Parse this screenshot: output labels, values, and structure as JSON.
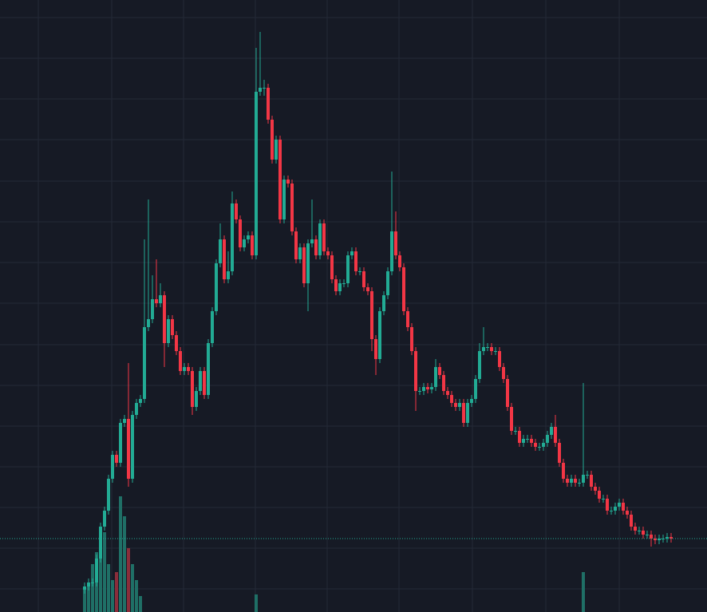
{
  "chart_data": {
    "type": "candlestick",
    "up_color": "#22ab94",
    "down_color": "#f23645",
    "volume_up_color": "#1f6f66",
    "volume_down_color": "#8a2d3a",
    "background": "#161a25",
    "grid_color": "#242936",
    "grid": true,
    "ylim": [
      0,
      767
    ],
    "yticks": [
      745,
      694,
      643,
      592,
      540,
      489,
      438,
      387,
      335,
      284,
      233,
      182,
      131,
      80,
      29
    ],
    "volume_lim": [
      0,
      767
    ],
    "open": [
      28,
      32,
      37,
      37,
      67,
      107,
      127,
      167,
      197,
      187,
      237,
      242,
      167,
      247,
      262,
      267,
      357,
      367,
      392,
      387,
      397,
      337,
      367,
      347,
      327,
      302,
      307,
      302,
      257,
      277,
      302,
      272,
      337,
      377,
      437,
      467,
      417,
      427,
      512,
      492,
      457,
      467,
      472,
      447,
      652,
      657,
      657,
      617,
      567,
      592,
      492,
      542,
      537,
      477,
      442,
      457,
      412,
      462,
      467,
      447,
      487,
      452,
      447,
      417,
      402,
      412,
      412,
      447,
      452,
      427,
      427,
      407,
      402,
      342,
      317,
      377,
      397,
      427,
      477,
      447,
      432,
      377,
      357,
      327,
      277,
      277,
      282,
      279,
      282,
      307,
      297,
      277,
      272,
      262,
      257,
      262,
      237,
      262,
      267,
      292,
      327,
      332,
      332,
      327,
      327,
      307,
      292,
      257,
      227,
      227,
      212,
      217,
      217,
      212,
      207,
      207,
      212,
      222,
      232,
      212,
      187,
      167,
      162,
      167,
      162,
      162,
      172,
      172,
      157,
      152,
      142,
      142,
      127,
      127,
      132,
      137,
      127,
      122,
      107,
      102,
      102,
      97,
      97,
      92,
      90,
      92,
      92,
      94
    ],
    "high": [
      37,
      42,
      42,
      72,
      112,
      132,
      172,
      202,
      202,
      242,
      247,
      312,
      252,
      267,
      272,
      467,
      517,
      422,
      442,
      412,
      402,
      372,
      372,
      352,
      332,
      312,
      312,
      307,
      282,
      307,
      307,
      342,
      382,
      442,
      487,
      472,
      452,
      527,
      517,
      497,
      472,
      477,
      477,
      707,
      727,
      667,
      662,
      622,
      597,
      597,
      547,
      547,
      542,
      482,
      462,
      462,
      467,
      517,
      472,
      492,
      492,
      457,
      452,
      422,
      417,
      417,
      452,
      457,
      457,
      432,
      432,
      412,
      407,
      347,
      382,
      402,
      432,
      552,
      502,
      452,
      437,
      382,
      362,
      332,
      282,
      287,
      287,
      287,
      317,
      312,
      302,
      282,
      277,
      267,
      267,
      267,
      267,
      272,
      297,
      337,
      357,
      337,
      337,
      332,
      332,
      312,
      297,
      262,
      232,
      232,
      222,
      222,
      222,
      217,
      212,
      217,
      227,
      237,
      247,
      217,
      192,
      172,
      172,
      172,
      167,
      287,
      177,
      177,
      162,
      157,
      147,
      147,
      132,
      137,
      142,
      142,
      132,
      127,
      112,
      107,
      107,
      102,
      102,
      97,
      97,
      97,
      99,
      99
    ],
    "low": [
      23,
      27,
      32,
      32,
      62,
      102,
      122,
      162,
      182,
      182,
      232,
      157,
      162,
      242,
      257,
      262,
      352,
      362,
      382,
      382,
      307,
      332,
      342,
      322,
      297,
      297,
      297,
      247,
      252,
      272,
      267,
      267,
      332,
      372,
      432,
      412,
      412,
      422,
      487,
      452,
      452,
      462,
      442,
      442,
      647,
      647,
      612,
      562,
      562,
      487,
      487,
      532,
      472,
      437,
      437,
      407,
      377,
      457,
      442,
      442,
      447,
      442,
      412,
      397,
      397,
      407,
      407,
      442,
      422,
      422,
      402,
      397,
      327,
      297,
      312,
      372,
      392,
      422,
      442,
      427,
      372,
      352,
      322,
      252,
      272,
      272,
      274,
      274,
      277,
      292,
      272,
      267,
      257,
      252,
      252,
      232,
      232,
      257,
      262,
      287,
      322,
      327,
      322,
      322,
      302,
      287,
      252,
      222,
      222,
      207,
      207,
      212,
      207,
      202,
      202,
      202,
      207,
      217,
      207,
      182,
      162,
      157,
      157,
      157,
      157,
      157,
      167,
      152,
      147,
      137,
      137,
      122,
      122,
      122,
      127,
      122,
      117,
      102,
      97,
      97,
      92,
      92,
      82,
      85,
      85,
      87,
      87,
      87
    ],
    "close": [
      32,
      37,
      37,
      67,
      107,
      127,
      167,
      197,
      187,
      237,
      242,
      167,
      247,
      262,
      267,
      357,
      367,
      392,
      387,
      397,
      337,
      367,
      347,
      327,
      302,
      307,
      302,
      257,
      277,
      302,
      272,
      337,
      377,
      437,
      467,
      417,
      427,
      512,
      492,
      457,
      467,
      472,
      447,
      652,
      657,
      657,
      617,
      567,
      592,
      492,
      542,
      537,
      477,
      442,
      457,
      412,
      462,
      467,
      447,
      487,
      452,
      447,
      417,
      402,
      412,
      412,
      447,
      452,
      427,
      427,
      407,
      402,
      342,
      317,
      377,
      397,
      427,
      477,
      447,
      432,
      377,
      357,
      327,
      277,
      277,
      282,
      279,
      282,
      307,
      297,
      277,
      272,
      262,
      257,
      262,
      237,
      262,
      267,
      292,
      327,
      332,
      332,
      327,
      327,
      307,
      292,
      257,
      227,
      227,
      212,
      217,
      217,
      212,
      207,
      207,
      212,
      222,
      232,
      212,
      187,
      167,
      162,
      167,
      162,
      162,
      172,
      172,
      157,
      152,
      142,
      142,
      127,
      127,
      132,
      137,
      127,
      122,
      107,
      102,
      102,
      97,
      97,
      92,
      90,
      92,
      92,
      94,
      92
    ],
    "volume": [
      30,
      35,
      60,
      75,
      80,
      100,
      60,
      40,
      50,
      145,
      120,
      80,
      60,
      40,
      20,
      0,
      0,
      0,
      0,
      0,
      0,
      0,
      0,
      0,
      0,
      0,
      0,
      0,
      0,
      0,
      0,
      0,
      0,
      0,
      0,
      0,
      0,
      0,
      0,
      0,
      0,
      0,
      0,
      22,
      0,
      0,
      0,
      0,
      0,
      0,
      0,
      0,
      0,
      0,
      0,
      0,
      0,
      0,
      0,
      0,
      0,
      0,
      0,
      0,
      0,
      0,
      0,
      0,
      0,
      0,
      0,
      0,
      0,
      0,
      0,
      0,
      0,
      0,
      0,
      0,
      0,
      0,
      0,
      0,
      0,
      0,
      0,
      0,
      0,
      0,
      0,
      0,
      0,
      0,
      0,
      0,
      0,
      0,
      0,
      0,
      0,
      0,
      0,
      0,
      0,
      0,
      0,
      0,
      0,
      0,
      0,
      0,
      0,
      0,
      0,
      0,
      0,
      0,
      0,
      0,
      0,
      0,
      0,
      0,
      0,
      50,
      0,
      0,
      0,
      0,
      0,
      0,
      0,
      0,
      0,
      0,
      0,
      0,
      0,
      0,
      0,
      0,
      0,
      0,
      0,
      0,
      0,
      0
    ]
  }
}
